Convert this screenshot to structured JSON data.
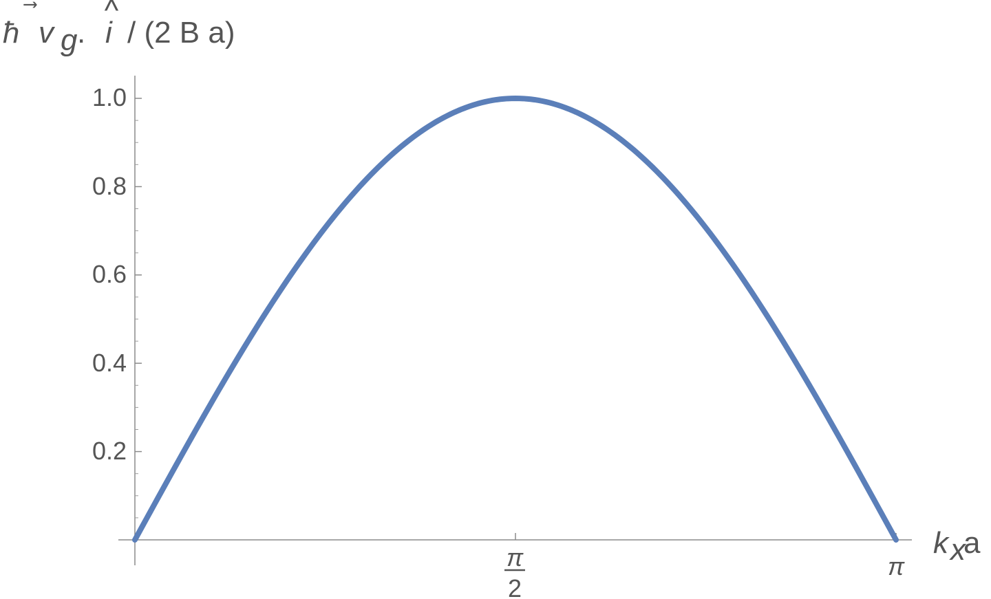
{
  "chart_data": {
    "type": "line",
    "ylabel_parts": {
      "hbar": "ħ",
      "vector_arrow": "⃗",
      "v": "v",
      "sub_g": "g",
      "dot": ".",
      "hat": "^",
      "i": "i",
      "rest": "/ (2 B a)"
    },
    "xlabel_parts": {
      "k": "k",
      "sub_x": "x",
      "a": "a"
    },
    "x_ticks": [
      {
        "value": 1.5707963,
        "numerator": "π",
        "denominator": "2"
      },
      {
        "value": 3.1415927,
        "label": "π"
      }
    ],
    "y_ticks": [
      {
        "value": 0.2,
        "label": "0.2"
      },
      {
        "value": 0.4,
        "label": "0.4"
      },
      {
        "value": 0.6,
        "label": "0.6"
      },
      {
        "value": 0.8,
        "label": "0.8"
      },
      {
        "value": 1.0,
        "label": "1.0"
      }
    ],
    "xlim": [
      0,
      3.1415927
    ],
    "ylim": [
      0,
      1.0
    ],
    "series": [
      {
        "color": "#5b7fb9",
        "x": [
          0,
          0.1963,
          0.3927,
          0.589,
          0.7854,
          0.9817,
          1.1781,
          1.3744,
          1.5708,
          1.7671,
          1.9635,
          2.1598,
          2.3562,
          2.5525,
          2.7489,
          2.9452,
          3.1416
        ],
        "y": [
          0,
          0.1951,
          0.3827,
          0.5556,
          0.7071,
          0.8315,
          0.9239,
          0.9808,
          1.0,
          0.9808,
          0.9239,
          0.8315,
          0.7071,
          0.5556,
          0.3827,
          0.1951,
          0
        ]
      }
    ],
    "grid": false,
    "legend": "none"
  }
}
